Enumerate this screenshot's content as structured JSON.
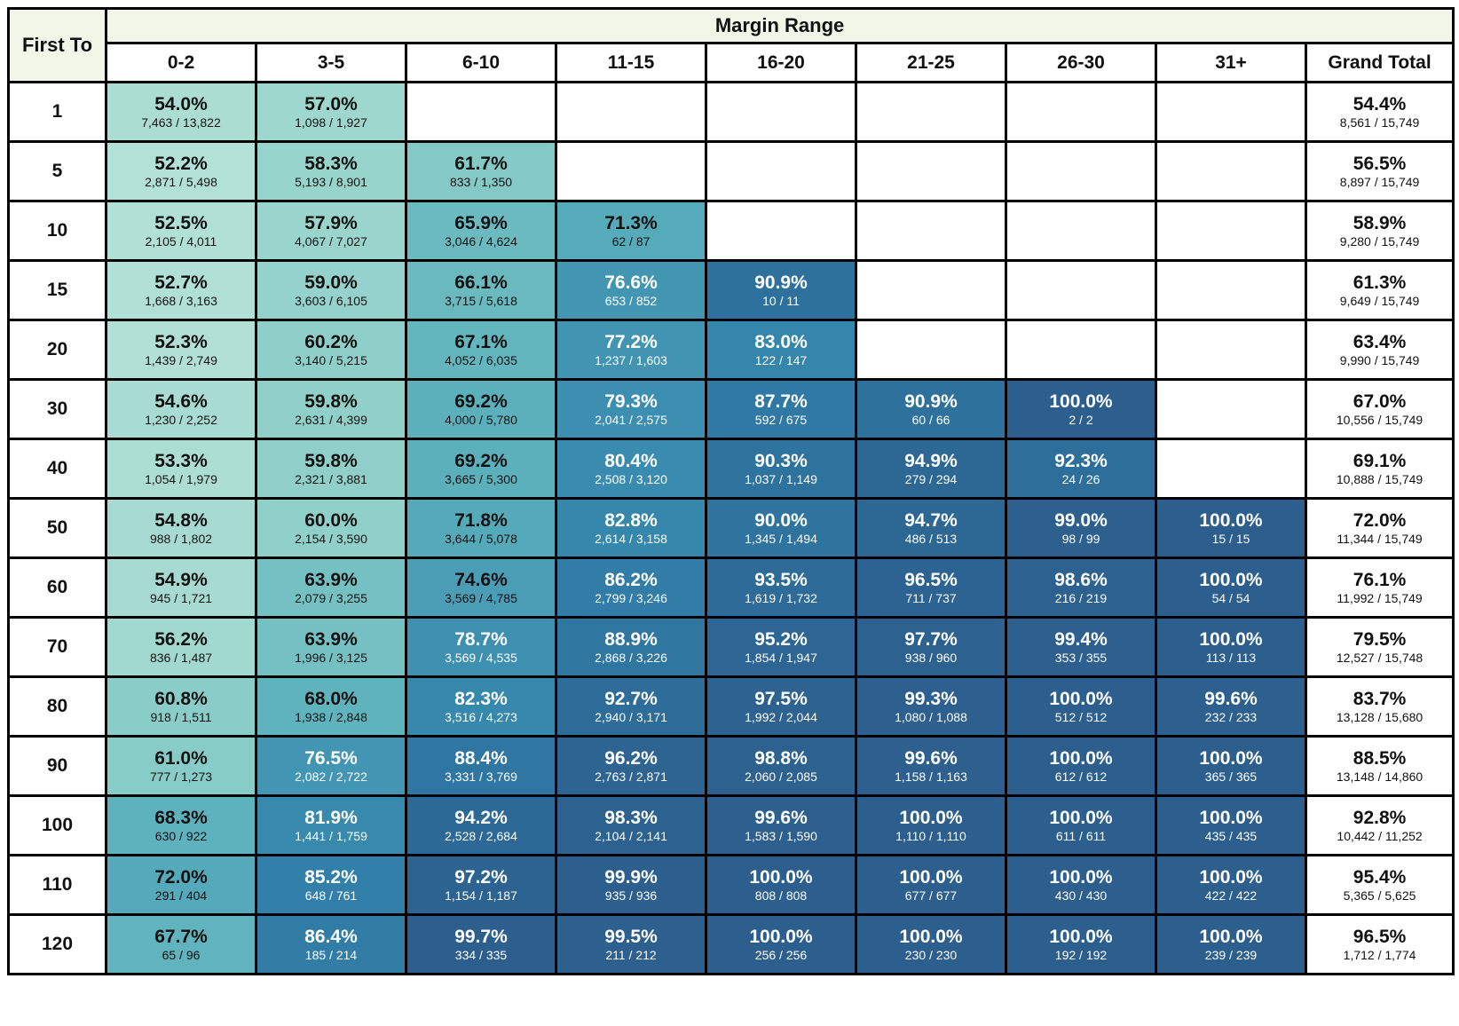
{
  "table": {
    "row_header_label": "First To",
    "col_group_label": "Margin Range"
  },
  "colors": {
    "header_band_bg": "#f2f6e8",
    "grid_border": "#000000",
    "cell_text_dark": "#111111",
    "cell_text_light": "#ffffff",
    "white_text_threshold": 75.5,
    "scale": [
      {
        "value": 52,
        "color": "#b3e1d7"
      },
      {
        "value": 56,
        "color": "#a2d9cf"
      },
      {
        "value": 60,
        "color": "#8fd0c9"
      },
      {
        "value": 64,
        "color": "#74c0c2"
      },
      {
        "value": 68,
        "color": "#5fb3bd"
      },
      {
        "value": 72,
        "color": "#54a9ba"
      },
      {
        "value": 76,
        "color": "#4497b3"
      },
      {
        "value": 80,
        "color": "#3a8daf"
      },
      {
        "value": 84,
        "color": "#3384ab"
      },
      {
        "value": 88,
        "color": "#2f78a3"
      },
      {
        "value": 92,
        "color": "#2e6f9b"
      },
      {
        "value": 96,
        "color": "#2d6492"
      },
      {
        "value": 100,
        "color": "#2d5f8e"
      }
    ]
  },
  "chart_data": {
    "type": "heatmap",
    "x_label": "Margin Range",
    "y_label": "First To",
    "x_categories": [
      "0-2",
      "3-5",
      "6-10",
      "11-15",
      "16-20",
      "21-25",
      "26-30",
      "31+"
    ],
    "grand_total_label": "Grand Total",
    "y_categories": [
      "1",
      "5",
      "10",
      "15",
      "20",
      "30",
      "40",
      "50",
      "60",
      "70",
      "80",
      "90",
      "100",
      "110",
      "120"
    ],
    "rows": [
      {
        "first_to": "1",
        "cells": [
          {
            "value": 54.0,
            "pct": "54.0%",
            "frac": "7,463 / 13,822"
          },
          {
            "value": 57.0,
            "pct": "57.0%",
            "frac": "1,098 / 1,927"
          },
          null,
          null,
          null,
          null,
          null,
          null
        ],
        "grand_total": {
          "value": 54.4,
          "pct": "54.4%",
          "frac": "8,561 / 15,749"
        }
      },
      {
        "first_to": "5",
        "cells": [
          {
            "value": 52.2,
            "pct": "52.2%",
            "frac": "2,871 / 5,498"
          },
          {
            "value": 58.3,
            "pct": "58.3%",
            "frac": "5,193 / 8,901"
          },
          {
            "value": 61.7,
            "pct": "61.7%",
            "frac": "833 / 1,350"
          },
          null,
          null,
          null,
          null,
          null
        ],
        "grand_total": {
          "value": 56.5,
          "pct": "56.5%",
          "frac": "8,897 / 15,749"
        }
      },
      {
        "first_to": "10",
        "cells": [
          {
            "value": 52.5,
            "pct": "52.5%",
            "frac": "2,105 / 4,011"
          },
          {
            "value": 57.9,
            "pct": "57.9%",
            "frac": "4,067 / 7,027"
          },
          {
            "value": 65.9,
            "pct": "65.9%",
            "frac": "3,046 / 4,624"
          },
          {
            "value": 71.3,
            "pct": "71.3%",
            "frac": "62 / 87"
          },
          null,
          null,
          null,
          null
        ],
        "grand_total": {
          "value": 58.9,
          "pct": "58.9%",
          "frac": "9,280 / 15,749"
        }
      },
      {
        "first_to": "15",
        "cells": [
          {
            "value": 52.7,
            "pct": "52.7%",
            "frac": "1,668 / 3,163"
          },
          {
            "value": 59.0,
            "pct": "59.0%",
            "frac": "3,603 / 6,105"
          },
          {
            "value": 66.1,
            "pct": "66.1%",
            "frac": "3,715 / 5,618"
          },
          {
            "value": 76.6,
            "pct": "76.6%",
            "frac": "653 / 852"
          },
          {
            "value": 90.9,
            "pct": "90.9%",
            "frac": "10 / 11"
          },
          null,
          null,
          null
        ],
        "grand_total": {
          "value": 61.3,
          "pct": "61.3%",
          "frac": "9,649 / 15,749"
        }
      },
      {
        "first_to": "20",
        "cells": [
          {
            "value": 52.3,
            "pct": "52.3%",
            "frac": "1,439 / 2,749"
          },
          {
            "value": 60.2,
            "pct": "60.2%",
            "frac": "3,140 / 5,215"
          },
          {
            "value": 67.1,
            "pct": "67.1%",
            "frac": "4,052 / 6,035"
          },
          {
            "value": 77.2,
            "pct": "77.2%",
            "frac": "1,237 / 1,603"
          },
          {
            "value": 83.0,
            "pct": "83.0%",
            "frac": "122 / 147"
          },
          null,
          null,
          null
        ],
        "grand_total": {
          "value": 63.4,
          "pct": "63.4%",
          "frac": "9,990 / 15,749"
        }
      },
      {
        "first_to": "30",
        "cells": [
          {
            "value": 54.6,
            "pct": "54.6%",
            "frac": "1,230 / 2,252"
          },
          {
            "value": 59.8,
            "pct": "59.8%",
            "frac": "2,631 / 4,399"
          },
          {
            "value": 69.2,
            "pct": "69.2%",
            "frac": "4,000 / 5,780"
          },
          {
            "value": 79.3,
            "pct": "79.3%",
            "frac": "2,041 / 2,575"
          },
          {
            "value": 87.7,
            "pct": "87.7%",
            "frac": "592 / 675"
          },
          {
            "value": 90.9,
            "pct": "90.9%",
            "frac": "60 / 66"
          },
          {
            "value": 100.0,
            "pct": "100.0%",
            "frac": "2 / 2"
          },
          null
        ],
        "grand_total": {
          "value": 67.0,
          "pct": "67.0%",
          "frac": "10,556 / 15,749"
        }
      },
      {
        "first_to": "40",
        "cells": [
          {
            "value": 53.3,
            "pct": "53.3%",
            "frac": "1,054 / 1,979"
          },
          {
            "value": 59.8,
            "pct": "59.8%",
            "frac": "2,321 / 3,881"
          },
          {
            "value": 69.2,
            "pct": "69.2%",
            "frac": "3,665 / 5,300"
          },
          {
            "value": 80.4,
            "pct": "80.4%",
            "frac": "2,508 / 3,120"
          },
          {
            "value": 90.3,
            "pct": "90.3%",
            "frac": "1,037 / 1,149"
          },
          {
            "value": 94.9,
            "pct": "94.9%",
            "frac": "279 / 294"
          },
          {
            "value": 92.3,
            "pct": "92.3%",
            "frac": "24 / 26"
          },
          null
        ],
        "grand_total": {
          "value": 69.1,
          "pct": "69.1%",
          "frac": "10,888 / 15,749"
        }
      },
      {
        "first_to": "50",
        "cells": [
          {
            "value": 54.8,
            "pct": "54.8%",
            "frac": "988 / 1,802"
          },
          {
            "value": 60.0,
            "pct": "60.0%",
            "frac": "2,154 / 3,590"
          },
          {
            "value": 71.8,
            "pct": "71.8%",
            "frac": "3,644 / 5,078"
          },
          {
            "value": 82.8,
            "pct": "82.8%",
            "frac": "2,614 / 3,158"
          },
          {
            "value": 90.0,
            "pct": "90.0%",
            "frac": "1,345 / 1,494"
          },
          {
            "value": 94.7,
            "pct": "94.7%",
            "frac": "486 / 513"
          },
          {
            "value": 99.0,
            "pct": "99.0%",
            "frac": "98 / 99"
          },
          {
            "value": 100.0,
            "pct": "100.0%",
            "frac": "15 / 15"
          }
        ],
        "grand_total": {
          "value": 72.0,
          "pct": "72.0%",
          "frac": "11,344 / 15,749"
        }
      },
      {
        "first_to": "60",
        "cells": [
          {
            "value": 54.9,
            "pct": "54.9%",
            "frac": "945 / 1,721"
          },
          {
            "value": 63.9,
            "pct": "63.9%",
            "frac": "2,079 / 3,255"
          },
          {
            "value": 74.6,
            "pct": "74.6%",
            "frac": "3,569 / 4,785"
          },
          {
            "value": 86.2,
            "pct": "86.2%",
            "frac": "2,799 / 3,246"
          },
          {
            "value": 93.5,
            "pct": "93.5%",
            "frac": "1,619 / 1,732"
          },
          {
            "value": 96.5,
            "pct": "96.5%",
            "frac": "711 / 737"
          },
          {
            "value": 98.6,
            "pct": "98.6%",
            "frac": "216 / 219"
          },
          {
            "value": 100.0,
            "pct": "100.0%",
            "frac": "54 / 54"
          }
        ],
        "grand_total": {
          "value": 76.1,
          "pct": "76.1%",
          "frac": "11,992 / 15,749"
        }
      },
      {
        "first_to": "70",
        "cells": [
          {
            "value": 56.2,
            "pct": "56.2%",
            "frac": "836 / 1,487"
          },
          {
            "value": 63.9,
            "pct": "63.9%",
            "frac": "1,996 / 3,125"
          },
          {
            "value": 78.7,
            "pct": "78.7%",
            "frac": "3,569 / 4,535"
          },
          {
            "value": 88.9,
            "pct": "88.9%",
            "frac": "2,868 / 3,226"
          },
          {
            "value": 95.2,
            "pct": "95.2%",
            "frac": "1,854 / 1,947"
          },
          {
            "value": 97.7,
            "pct": "97.7%",
            "frac": "938 / 960"
          },
          {
            "value": 99.4,
            "pct": "99.4%",
            "frac": "353 / 355"
          },
          {
            "value": 100.0,
            "pct": "100.0%",
            "frac": "113 / 113"
          }
        ],
        "grand_total": {
          "value": 79.5,
          "pct": "79.5%",
          "frac": "12,527 / 15,748"
        }
      },
      {
        "first_to": "80",
        "cells": [
          {
            "value": 60.8,
            "pct": "60.8%",
            "frac": "918 / 1,511"
          },
          {
            "value": 68.0,
            "pct": "68.0%",
            "frac": "1,938 / 2,848"
          },
          {
            "value": 82.3,
            "pct": "82.3%",
            "frac": "3,516 / 4,273"
          },
          {
            "value": 92.7,
            "pct": "92.7%",
            "frac": "2,940 / 3,171"
          },
          {
            "value": 97.5,
            "pct": "97.5%",
            "frac": "1,992 / 2,044"
          },
          {
            "value": 99.3,
            "pct": "99.3%",
            "frac": "1,080 / 1,088"
          },
          {
            "value": 100.0,
            "pct": "100.0%",
            "frac": "512 / 512"
          },
          {
            "value": 99.6,
            "pct": "99.6%",
            "frac": "232 / 233"
          }
        ],
        "grand_total": {
          "value": 83.7,
          "pct": "83.7%",
          "frac": "13,128 / 15,680"
        }
      },
      {
        "first_to": "90",
        "cells": [
          {
            "value": 61.0,
            "pct": "61.0%",
            "frac": "777 / 1,273"
          },
          {
            "value": 76.5,
            "pct": "76.5%",
            "frac": "2,082 / 2,722"
          },
          {
            "value": 88.4,
            "pct": "88.4%",
            "frac": "3,331 / 3,769"
          },
          {
            "value": 96.2,
            "pct": "96.2%",
            "frac": "2,763 / 2,871"
          },
          {
            "value": 98.8,
            "pct": "98.8%",
            "frac": "2,060 / 2,085"
          },
          {
            "value": 99.6,
            "pct": "99.6%",
            "frac": "1,158 / 1,163"
          },
          {
            "value": 100.0,
            "pct": "100.0%",
            "frac": "612 / 612"
          },
          {
            "value": 100.0,
            "pct": "100.0%",
            "frac": "365 / 365"
          }
        ],
        "grand_total": {
          "value": 88.5,
          "pct": "88.5%",
          "frac": "13,148 / 14,860"
        }
      },
      {
        "first_to": "100",
        "cells": [
          {
            "value": 68.3,
            "pct": "68.3%",
            "frac": "630 / 922"
          },
          {
            "value": 81.9,
            "pct": "81.9%",
            "frac": "1,441 / 1,759"
          },
          {
            "value": 94.2,
            "pct": "94.2%",
            "frac": "2,528 / 2,684"
          },
          {
            "value": 98.3,
            "pct": "98.3%",
            "frac": "2,104 / 2,141"
          },
          {
            "value": 99.6,
            "pct": "99.6%",
            "frac": "1,583 / 1,590"
          },
          {
            "value": 100.0,
            "pct": "100.0%",
            "frac": "1,110 / 1,110"
          },
          {
            "value": 100.0,
            "pct": "100.0%",
            "frac": "611 / 611"
          },
          {
            "value": 100.0,
            "pct": "100.0%",
            "frac": "435 / 435"
          }
        ],
        "grand_total": {
          "value": 92.8,
          "pct": "92.8%",
          "frac": "10,442 / 11,252"
        }
      },
      {
        "first_to": "110",
        "cells": [
          {
            "value": 72.0,
            "pct": "72.0%",
            "frac": "291 / 404"
          },
          {
            "value": 85.2,
            "pct": "85.2%",
            "frac": "648 / 761"
          },
          {
            "value": 97.2,
            "pct": "97.2%",
            "frac": "1,154 / 1,187"
          },
          {
            "value": 99.9,
            "pct": "99.9%",
            "frac": "935 / 936"
          },
          {
            "value": 100.0,
            "pct": "100.0%",
            "frac": "808 / 808"
          },
          {
            "value": 100.0,
            "pct": "100.0%",
            "frac": "677 / 677"
          },
          {
            "value": 100.0,
            "pct": "100.0%",
            "frac": "430 / 430"
          },
          {
            "value": 100.0,
            "pct": "100.0%",
            "frac": "422 / 422"
          }
        ],
        "grand_total": {
          "value": 95.4,
          "pct": "95.4%",
          "frac": "5,365 / 5,625"
        }
      },
      {
        "first_to": "120",
        "cells": [
          {
            "value": 67.7,
            "pct": "67.7%",
            "frac": "65 / 96"
          },
          {
            "value": 86.4,
            "pct": "86.4%",
            "frac": "185 / 214"
          },
          {
            "value": 99.7,
            "pct": "99.7%",
            "frac": "334 / 335"
          },
          {
            "value": 99.5,
            "pct": "99.5%",
            "frac": "211 / 212"
          },
          {
            "value": 100.0,
            "pct": "100.0%",
            "frac": "256 / 256"
          },
          {
            "value": 100.0,
            "pct": "100.0%",
            "frac": "230 / 230"
          },
          {
            "value": 100.0,
            "pct": "100.0%",
            "frac": "192 / 192"
          },
          {
            "value": 100.0,
            "pct": "100.0%",
            "frac": "239 / 239"
          }
        ],
        "grand_total": {
          "value": 96.5,
          "pct": "96.5%",
          "frac": "1,712 / 1,774"
        }
      }
    ]
  }
}
